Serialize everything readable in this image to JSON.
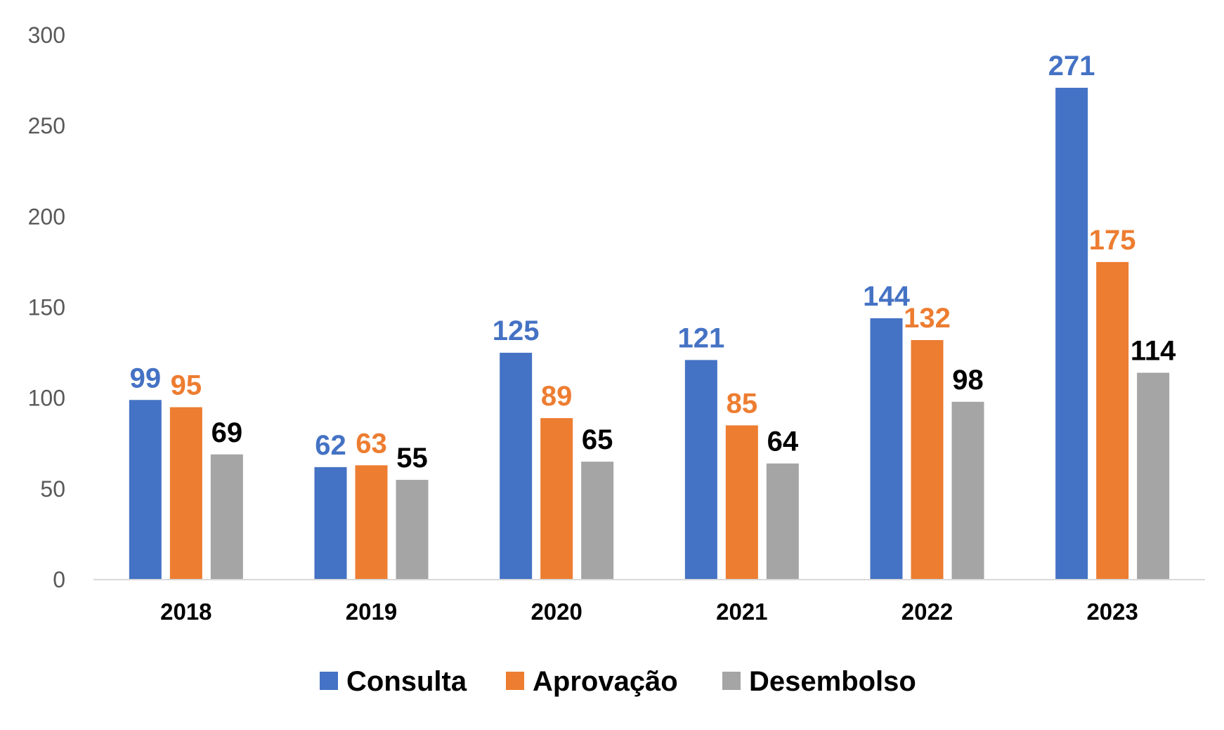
{
  "chart_data": {
    "type": "bar",
    "title": "",
    "xlabel": "",
    "ylabel": "",
    "ylim": [
      0,
      300
    ],
    "yticks": [
      "0",
      "50",
      "100",
      "150",
      "200",
      "250",
      "300"
    ],
    "categories": [
      "2018",
      "2019",
      "2020",
      "2021",
      "2022",
      "2023"
    ],
    "series": [
      {
        "name": "Consulta",
        "color": "#4472C4",
        "label_color": "#4472C4",
        "values": [
          99,
          62,
          125,
          121,
          144,
          271
        ]
      },
      {
        "name": "Aprovação",
        "color": "#ED7D31",
        "label_color": "#ED7D31",
        "values": [
          95,
          63,
          89,
          85,
          132,
          175
        ]
      },
      {
        "name": "Desembolso",
        "color": "#A5A5A5",
        "label_color": "#000000",
        "values": [
          69,
          55,
          65,
          64,
          98,
          114
        ]
      }
    ],
    "legend_position": "bottom",
    "grid": false
  }
}
